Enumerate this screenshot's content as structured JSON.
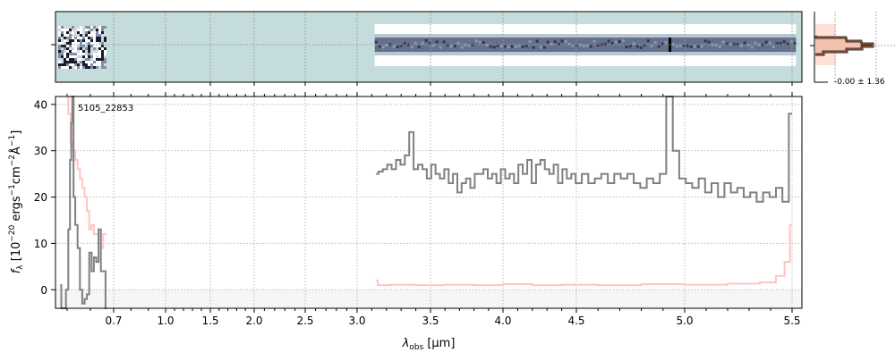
{
  "chart_data": {
    "type": "line",
    "title": "",
    "object_label": "5105_22853",
    "xlabel": "λ_obs [μm]",
    "xlabel_main": "λ",
    "xlabel_sub": "obs",
    "xlabel_unit": " [μm]",
    "ylabel": "f_λ [10^-20 ergs^-1cm^-2Å^-1]",
    "xlim": [
      0.45,
      5.55
    ],
    "ylim": [
      -4,
      41.7
    ],
    "grid": true,
    "x_ticks": [
      "0.7",
      "1.0",
      "1.5",
      "2.0",
      "2.5",
      "3.0",
      "3.5",
      "4.0",
      "4.5",
      "5.0",
      "5.5"
    ],
    "y_ticks": [
      "0",
      "10",
      "20",
      "30",
      "40"
    ],
    "series": [
      {
        "name": "flux_blue",
        "color": "#808080",
        "x": [
          0.47,
          0.48,
          0.49,
          0.5,
          0.51,
          0.515,
          0.52,
          0.525,
          0.53,
          0.54,
          0.55,
          0.56,
          0.57,
          0.58,
          0.59,
          0.6,
          0.61,
          0.62,
          0.63,
          0.64,
          0.65,
          0.66,
          0.67
        ],
        "y": [
          1,
          -4,
          -4,
          0,
          13,
          28,
          36,
          42,
          20,
          14,
          9,
          0,
          -3,
          -2,
          -1,
          8,
          4,
          7,
          6,
          13,
          4,
          4,
          -4
        ]
      },
      {
        "name": "flux",
        "color": "#808080",
        "x_start": 3.13,
        "x_step": 0.03,
        "y": [
          25,
          25.5,
          26,
          27,
          26,
          28,
          27,
          29,
          34,
          26,
          27,
          26,
          24,
          27,
          25,
          24,
          26,
          23,
          25,
          21,
          23,
          24,
          22,
          25,
          25,
          26,
          24,
          25,
          23,
          26,
          24,
          25,
          23,
          27,
          25,
          28,
          23,
          27,
          28,
          26,
          25,
          27,
          23,
          26,
          24,
          25,
          23,
          25,
          23,
          24,
          25,
          23,
          25,
          24,
          25,
          23,
          22,
          24,
          23,
          25,
          44,
          30,
          24,
          23,
          22,
          24,
          21,
          23,
          20,
          23,
          21,
          22,
          20,
          21,
          19,
          21,
          20,
          22,
          19,
          38
        ]
      },
      {
        "name": "error_blue",
        "color": "#ffc4c4",
        "x": [
          0.5,
          0.51,
          0.52,
          0.53,
          0.54,
          0.55,
          0.56,
          0.57,
          0.58,
          0.59,
          0.6,
          0.61,
          0.62,
          0.63,
          0.64,
          0.65,
          0.66,
          0.67
        ],
        "y": [
          42,
          38,
          32,
          30,
          28,
          26,
          24,
          22,
          20,
          17,
          13,
          14,
          12,
          12,
          10,
          9,
          12,
          12
        ]
      },
      {
        "name": "error",
        "color": "#ffc4c4",
        "x": [
          3.13,
          3.15,
          3.3,
          3.5,
          3.7,
          3.9,
          4.1,
          4.3,
          4.5,
          4.7,
          4.9,
          5.1,
          5.3,
          5.4,
          5.45,
          5.48,
          5.5
        ],
        "y": [
          2,
          1,
          1.1,
          1,
          1.1,
          1,
          1.2,
          1,
          1.1,
          1,
          1.2,
          1.1,
          1.3,
          1.6,
          3,
          6,
          14
        ]
      }
    ],
    "side_panel": {
      "label": "-0.00 ± 1.36",
      "profile_color": "#a0522d",
      "fill_color": "#ffd8cc"
    },
    "twod_panel": {
      "background": "#c5dcdc",
      "trace_color": "#4a5878"
    }
  }
}
